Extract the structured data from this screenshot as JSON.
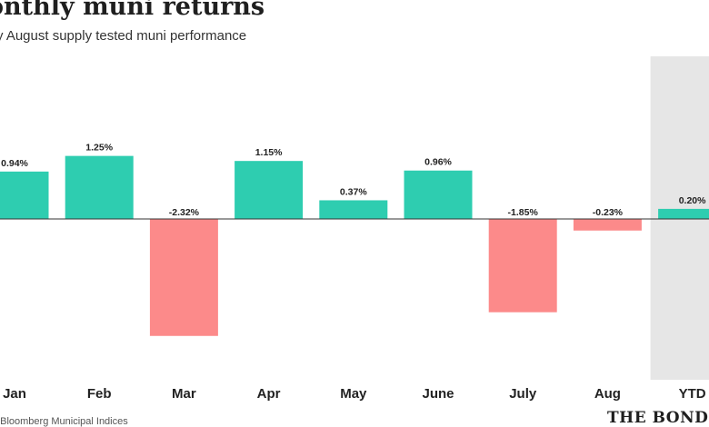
{
  "chart_data": {
    "type": "bar",
    "title": "onthly muni returns",
    "subtitle": "y August supply tested muni performance",
    "categories": [
      "Jan",
      "Feb",
      "Mar",
      "Apr",
      "May",
      "June",
      "July",
      "Aug",
      "YTD"
    ],
    "values": [
      0.94,
      1.25,
      -2.32,
      1.15,
      0.37,
      0.96,
      -1.85,
      -0.23,
      0.2
    ],
    "value_labels": [
      "0.94%",
      "1.25%",
      "-2.32%",
      "1.15%",
      "0.37%",
      "0.96%",
      "-1.85%",
      "-0.23%",
      "0.20%"
    ],
    "highlighted_category": "YTD",
    "grid": false,
    "colors": {
      "positive": "#2ecdb0",
      "negative": "#fc8a8a",
      "highlight_band": "#e6e6e6",
      "baseline": "#333333"
    }
  },
  "footer": {
    "source": ": Bloomberg Municipal Indices",
    "brand": "THE BOND BU"
  }
}
